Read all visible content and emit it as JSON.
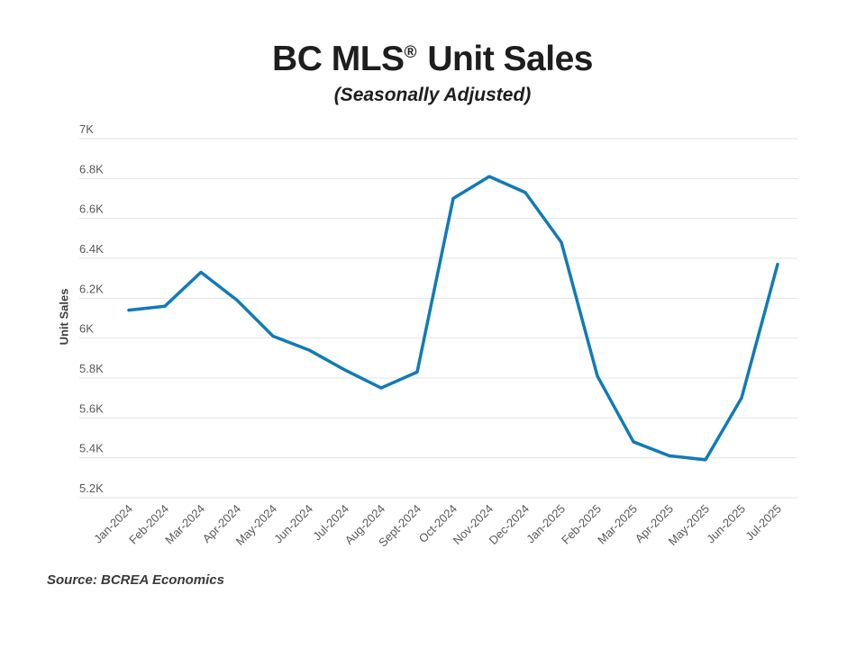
{
  "header": {
    "title_main": "BC MLS",
    "title_reg": "®",
    "title_rest": " Unit Sales",
    "subtitle": "(Seasonally Adjusted)"
  },
  "footer": {
    "source": "Source: BCREA Economics"
  },
  "chart_data": {
    "type": "line",
    "title": "BC MLS® Unit Sales",
    "subtitle": "(Seasonally Adjusted)",
    "xlabel": "",
    "ylabel": "Unit Sales",
    "categories": [
      "Jan-2024",
      "Feb-2024",
      "Mar-2024",
      "Apr-2024",
      "May-2024",
      "Jun-2024",
      "Jul-2024",
      "Aug-2024",
      "Sept-2024",
      "Oct-2024",
      "Nov-2024",
      "Dec-2024",
      "Jan-2025",
      "Feb-2025",
      "Mar-2025",
      "Apr-2025",
      "May-2025",
      "Jun-2025",
      "Jul-2025"
    ],
    "series": [
      {
        "name": "BC MLS Unit Sales (Seasonally Adjusted)",
        "values": [
          6140,
          6160,
          6330,
          6190,
          6010,
          5940,
          5840,
          5750,
          5830,
          6700,
          6810,
          6730,
          6480,
          5810,
          5480,
          5410,
          5390,
          5700,
          6370
        ]
      }
    ],
    "ylim": [
      5200,
      7000
    ],
    "yticks": [
      {
        "value": 5200,
        "label": "5.2K"
      },
      {
        "value": 5400,
        "label": "5.4K"
      },
      {
        "value": 5600,
        "label": "5.6K"
      },
      {
        "value": 5800,
        "label": "5.8K"
      },
      {
        "value": 6000,
        "label": "6K"
      },
      {
        "value": 6200,
        "label": "6.2K"
      },
      {
        "value": 6400,
        "label": "6.4K"
      },
      {
        "value": 6600,
        "label": "6.6K"
      },
      {
        "value": 6800,
        "label": "6.8K"
      },
      {
        "value": 7000,
        "label": "7K"
      }
    ],
    "grid": true,
    "legend": "none",
    "line_color": "#117ab8",
    "grid_color": "#e3e3e3",
    "tick_label_color": "#595959",
    "x_label_rotation": -45
  }
}
